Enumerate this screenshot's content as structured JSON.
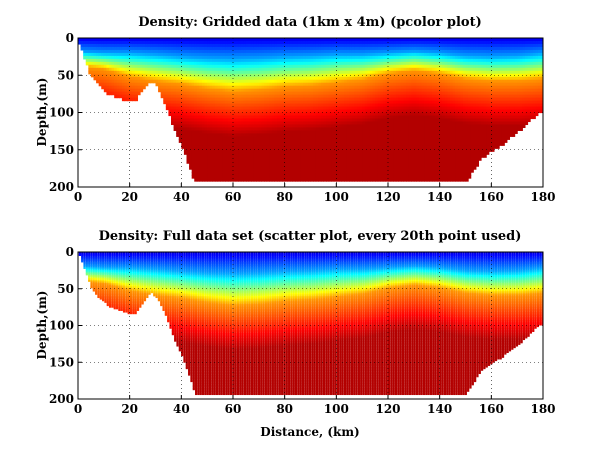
{
  "chart_data": [
    {
      "type": "heatmap",
      "subtype": "pcolor",
      "title": "Density: Gridded data (1km x 4m) (pcolor plot)",
      "xlabel": "",
      "ylabel": "Depth,(m)",
      "xlim": [
        0,
        180
      ],
      "ylim": [
        200,
        0
      ],
      "xticks": [
        0,
        20,
        40,
        60,
        80,
        100,
        120,
        140,
        160,
        180
      ],
      "yticks": [
        0,
        50,
        100,
        150,
        200
      ],
      "grid": "dotted",
      "colorscale": "jet (low density blue at surface, high density red at depth)",
      "bottom_profile": {
        "distance_km": [
          0,
          5,
          8,
          12,
          20,
          22,
          26,
          28,
          30,
          33,
          37,
          41,
          43,
          45,
          100,
          150,
          152,
          156,
          160,
          164,
          168,
          172,
          176,
          178,
          180
        ],
        "depth_m": [
          0,
          50,
          62,
          74,
          84,
          84,
          62,
          55,
          60,
          80,
          118,
          150,
          170,
          192,
          192,
          192,
          182,
          160,
          150,
          142,
          130,
          120,
          106,
          100,
          98
        ]
      },
      "isopycnal_depth_m": {
        "distance_km": [
          0,
          10,
          20,
          30,
          40,
          50,
          60,
          70,
          80,
          90,
          100,
          110,
          120,
          130,
          140,
          150,
          160,
          170,
          180
        ],
        "blue_layer_bottom": [
          18,
          20,
          20,
          22,
          25,
          27,
          28,
          27,
          25,
          24,
          22,
          22,
          20,
          18,
          20,
          24,
          25,
          24,
          20
        ],
        "orange_layer_top": [
          38,
          42,
          52,
          58,
          62,
          68,
          72,
          70,
          66,
          64,
          60,
          56,
          48,
          44,
          48,
          55,
          58,
          58,
          55
        ]
      }
    },
    {
      "type": "scatter",
      "subtype": "colored scatter",
      "title": "Density: Full data set (scatter plot, every 20th point used)",
      "xlabel": "Distance, (km)",
      "ylabel": "Depth,(m)",
      "xlim": [
        0,
        180
      ],
      "ylim": [
        200,
        0
      ],
      "xticks": [
        0,
        20,
        40,
        60,
        80,
        100,
        120,
        140,
        160,
        180
      ],
      "yticks": [
        0,
        50,
        100,
        150,
        200
      ],
      "grid": "dotted",
      "colorscale": "jet (low density blue at surface, high density red at depth)",
      "bottom_profile": {
        "distance_km": [
          0,
          5,
          8,
          12,
          20,
          22,
          26,
          28,
          30,
          33,
          37,
          41,
          43,
          45,
          100,
          150,
          152,
          156,
          160,
          164,
          168,
          172,
          176,
          178,
          180
        ],
        "depth_m": [
          0,
          50,
          62,
          74,
          84,
          84,
          62,
          55,
          60,
          80,
          118,
          150,
          170,
          192,
          192,
          192,
          182,
          160,
          150,
          142,
          130,
          120,
          106,
          100,
          98
        ]
      }
    }
  ]
}
